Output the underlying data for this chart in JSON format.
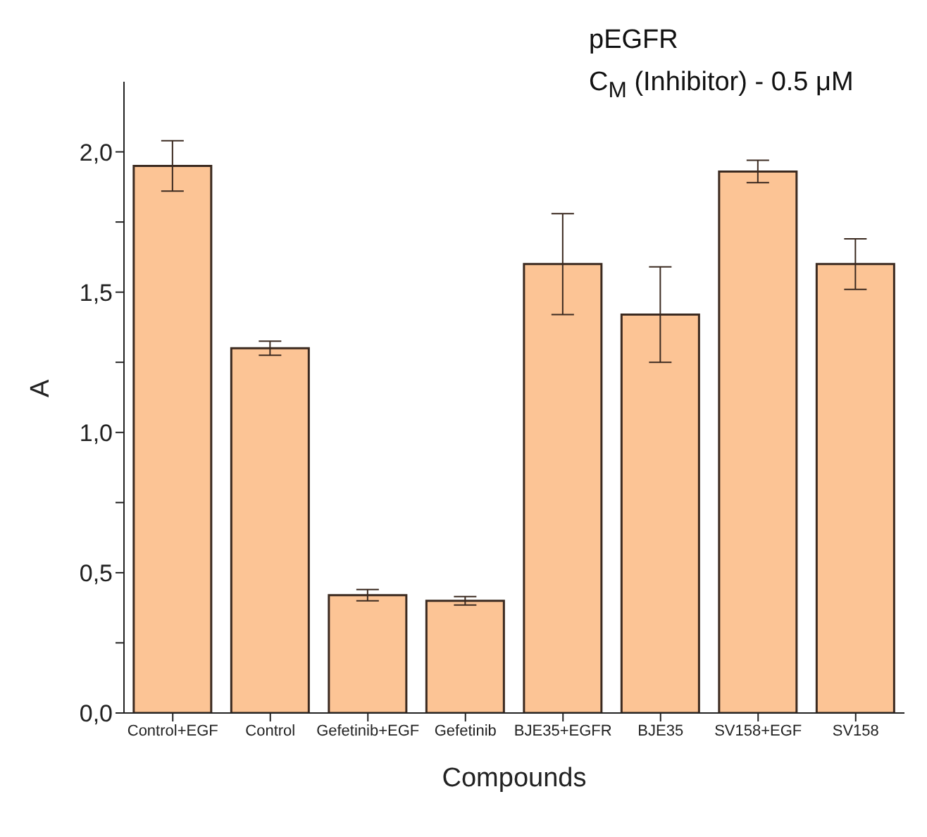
{
  "chart_data": {
    "type": "bar",
    "title": "pEGFR",
    "subtitle": "C$_{M}$ (Inhibitor) - 0.5 μM",
    "xlabel": "Compounds",
    "ylabel": "A",
    "categories": [
      "Control+EGF",
      "Control",
      "Gefetinib+EGF",
      "Gefetinib",
      "BJE35+EGFR",
      "BJE35",
      "SV158+EGF",
      "SV158"
    ],
    "values": [
      1.95,
      1.3,
      0.42,
      0.4,
      1.6,
      1.42,
      1.93,
      1.6
    ],
    "errors": [
      0.09,
      0.025,
      0.02,
      0.015,
      0.18,
      0.17,
      0.04,
      0.09
    ],
    "color": "#fcc495",
    "ylim": [
      0,
      2.25
    ],
    "yticks": [
      {
        "value": 0,
        "label": "0,0"
      },
      {
        "value": 0.25,
        "label": null
      },
      {
        "value": 0.5,
        "label": "0,5"
      },
      {
        "value": 0.75,
        "label": null
      },
      {
        "value": 1,
        "label": "1,0"
      },
      {
        "value": 1.25,
        "label": null
      },
      {
        "value": 1.5,
        "label": "1,5"
      },
      {
        "value": 1.75,
        "label": null
      },
      {
        "value": 2,
        "label": "2,0"
      }
    ],
    "grid": false,
    "legend": false
  }
}
